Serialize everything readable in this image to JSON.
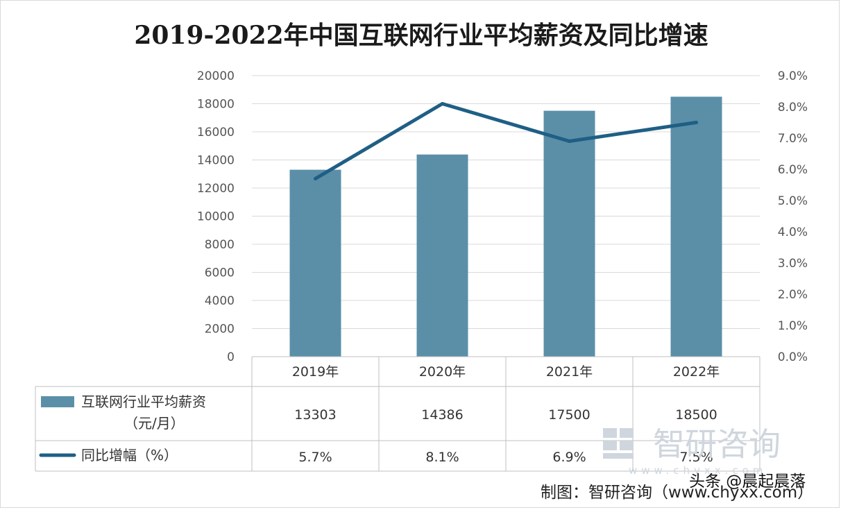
{
  "chart_data": {
    "type": "bar",
    "title": "2019-2022年中国互联网行业平均薪资及同比增速",
    "categories": [
      "2019年",
      "2020年",
      "2021年",
      "2022年"
    ],
    "series": [
      {
        "name": "互联网行业平均薪资",
        "name_line2": "（元/月）",
        "type": "bar",
        "axis": "left",
        "color": "#5b8fa8",
        "values": [
          13303,
          14386,
          17500,
          18500
        ]
      },
      {
        "name": "同比增幅（%）",
        "type": "line",
        "axis": "right",
        "color": "#1f5f85",
        "values": [
          5.7,
          8.1,
          6.9,
          7.5
        ]
      }
    ],
    "table_values": {
      "bar": [
        "13303",
        "14386",
        "17500",
        "18500"
      ],
      "line": [
        "5.7%",
        "8.1%",
        "6.9%",
        "7.5%"
      ]
    },
    "y_left": {
      "min": 0,
      "max": 20000,
      "step": 2000,
      "ticks": [
        "0",
        "2000",
        "4000",
        "6000",
        "8000",
        "10000",
        "12000",
        "14000",
        "16000",
        "18000",
        "20000"
      ]
    },
    "y_right": {
      "min": 0,
      "max": 9,
      "step": 1,
      "ticks": [
        "0.0%",
        "1.0%",
        "2.0%",
        "3.0%",
        "4.0%",
        "5.0%",
        "6.0%",
        "7.0%",
        "8.0%",
        "9.0%"
      ]
    },
    "grid": true,
    "legend": "data-table"
  },
  "credit": "制图：智研咨询（www.chyxx.com）",
  "watermark": {
    "brand": "智研咨询",
    "site": "www.chyxx.com",
    "overlay": "头条 @晨起晨落"
  }
}
